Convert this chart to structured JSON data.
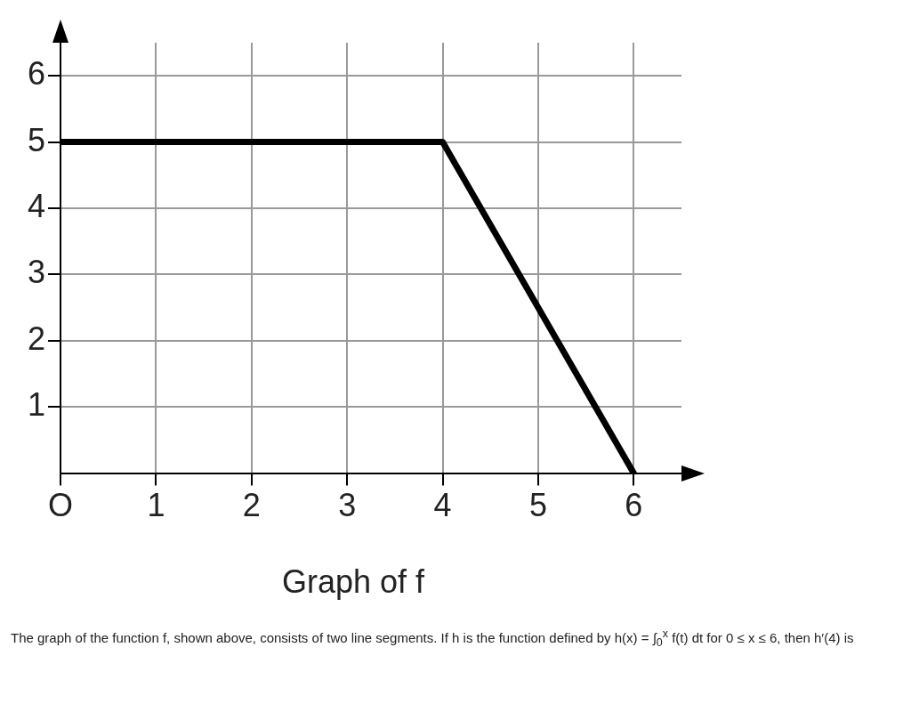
{
  "chart_data": {
    "type": "line",
    "title": "Graph of f",
    "x": [
      0,
      4,
      6
    ],
    "series": [
      {
        "color": "#000000",
        "values": [
          5,
          5,
          0
        ]
      }
    ],
    "xlim": [
      0,
      6.5
    ],
    "ylim": [
      0,
      6.5
    ],
    "xticks": [
      {
        "value": 0,
        "label": "O"
      },
      1,
      2,
      3,
      4,
      5,
      6
    ],
    "yticks": [
      1,
      2,
      3,
      4,
      5,
      6
    ],
    "grid": true,
    "legend": false,
    "marker": "none",
    "line_style": "solid",
    "annotations": [
      "The graph of the function f, shown above, consists of two line segments. If h is the function defined by h(x) = ∫$_{0}$$^{x}$ f(t) dt for 0 ≤ x ≤ 6, then h′(4) is"
    ]
  }
}
